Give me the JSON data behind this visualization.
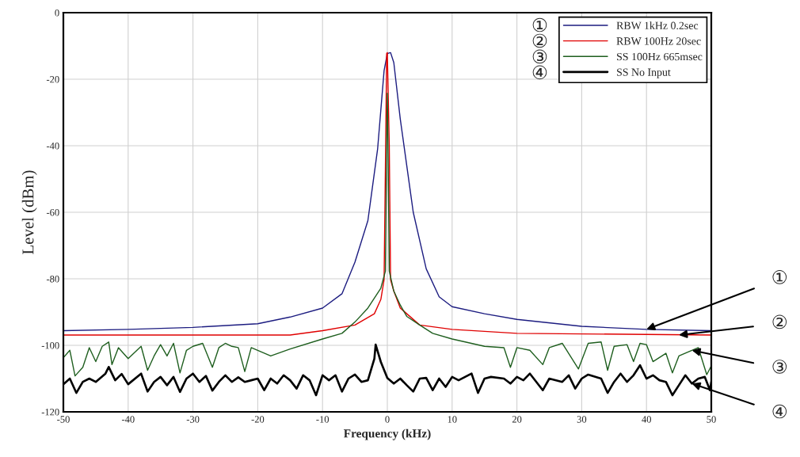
{
  "chart_data": {
    "type": "line",
    "xlabel": "Frequency (kHz)",
    "ylabel": "Level (dBm)",
    "xlim": [
      -50,
      50
    ],
    "ylim": [
      -120,
      0
    ],
    "xticks": [
      -50,
      -40,
      -30,
      -20,
      -10,
      0,
      10,
      20,
      30,
      40,
      50
    ],
    "yticks": [
      -120,
      -100,
      -80,
      -60,
      -40,
      -20,
      0
    ],
    "grid": true,
    "legend": "top right",
    "line_style": "solid",
    "marker": "none",
    "series": [
      {
        "name": "RBW 1kHz 0.2sec",
        "color": "#1c1c80",
        "x": [
          -50,
          -40,
          -30,
          -20,
          -15,
          -10,
          -7,
          -5,
          -3,
          -1.5,
          -0.5,
          0,
          0.5,
          1,
          2,
          4,
          6,
          8,
          10,
          15,
          20,
          30,
          40,
          50
        ],
        "values": [
          -95.6,
          -95.2,
          -94.6,
          -93.5,
          -91.5,
          -88.8,
          -84.5,
          -75,
          -62.5,
          -41,
          -17.4,
          -12.3,
          -12,
          -15,
          -32,
          -60,
          -77,
          -85.4,
          -88.4,
          -90.5,
          -92.2,
          -94.3,
          -95.2,
          -95.6
        ]
      },
      {
        "name": "RBW 100Hz 20sec",
        "color": "#e00000",
        "x": [
          -50,
          -15,
          -10,
          -5,
          -2,
          -1,
          -0.5,
          -0.3,
          -0.1,
          0,
          0.3,
          0.5,
          1,
          2,
          5,
          10,
          20,
          50
        ],
        "values": [
          -96.9,
          -96.9,
          -95.6,
          -93.9,
          -90.5,
          -86.2,
          -80.3,
          -47,
          -12.3,
          -12,
          -40,
          -80.3,
          -83.7,
          -88.8,
          -93.9,
          -95.2,
          -96.4,
          -96.9
        ]
      },
      {
        "name": "SS 100Hz 665msec",
        "color": "#1e5e1e",
        "x": [
          -50,
          -49,
          -48.2,
          -47,
          -46,
          -45,
          -44,
          -43,
          -42.5,
          -41.5,
          -40,
          -38,
          -37,
          -36,
          -35,
          -34,
          -33,
          -32,
          -31,
          -30,
          -28.5,
          -27,
          -26,
          -25,
          -24,
          -23,
          -22,
          -21,
          -20,
          -18,
          -15,
          -10,
          -7,
          -5,
          -3,
          -1,
          -0.3,
          -0.1,
          0,
          0.1,
          0.3,
          1,
          2,
          3,
          5,
          7,
          10,
          15,
          18,
          19,
          20,
          22,
          24,
          25,
          27,
          29.5,
          31,
          33,
          34,
          35,
          37,
          38,
          39,
          40,
          41,
          43,
          44,
          45,
          47,
          48,
          49.3,
          50
        ],
        "values": [
          -103.7,
          -101.5,
          -109.2,
          -106.6,
          -100.7,
          -104.9,
          -100.3,
          -99,
          -105.8,
          -100.7,
          -104,
          -100.3,
          -107.5,
          -103.2,
          -99.8,
          -103.2,
          -99.4,
          -108.3,
          -101.5,
          -100.3,
          -99.4,
          -106.6,
          -100.7,
          -99.4,
          -100.3,
          -100.7,
          -107.9,
          -100.7,
          -101.5,
          -103.2,
          -101.1,
          -98.1,
          -96.4,
          -93,
          -88.8,
          -82.8,
          -77.7,
          -38.7,
          -24.2,
          -38.7,
          -77.7,
          -83.7,
          -87.9,
          -91.3,
          -93.9,
          -96.4,
          -98.1,
          -100.3,
          -100.7,
          -106.6,
          -100.7,
          -101.5,
          -105.8,
          -100.7,
          -99.4,
          -107.1,
          -99.4,
          -99,
          -107.5,
          -100.3,
          -99.8,
          -104.9,
          -99.4,
          -99.8,
          -104.9,
          -102.4,
          -108.3,
          -103.2,
          -101.5,
          -100.7,
          -108.8,
          -106.2
        ]
      },
      {
        "name": "SS No Input",
        "color": "#000000",
        "x": [
          -50,
          -49,
          -48,
          -47,
          -46,
          -45,
          -43.5,
          -43,
          -42,
          -41,
          -40,
          -38,
          -37,
          -36,
          -35,
          -34,
          -33,
          -32,
          -31,
          -30,
          -29,
          -28,
          -27,
          -26,
          -25,
          -24,
          -23,
          -22,
          -21,
          -20,
          -19,
          -18,
          -17,
          -16,
          -15,
          -14,
          -13,
          -12,
          -11,
          -10,
          -9,
          -8,
          -7,
          -6,
          -5,
          -4,
          -3,
          -2,
          -1.8,
          -1,
          0,
          1,
          2,
          3,
          4,
          5,
          6,
          7,
          8,
          9,
          10,
          11,
          13,
          14,
          15,
          16,
          18,
          19,
          20,
          21,
          22,
          24,
          25,
          27,
          28,
          29,
          30,
          31,
          33,
          34,
          35,
          36,
          37,
          38,
          39,
          40,
          41,
          42,
          43,
          44,
          45,
          46,
          47,
          48,
          49,
          49.8,
          50
        ],
        "values": [
          -111.7,
          -110,
          -114.3,
          -111,
          -110,
          -111,
          -108.5,
          -106.5,
          -110.5,
          -108.6,
          -111.7,
          -108.5,
          -113.9,
          -111,
          -109.5,
          -112,
          -109.5,
          -114,
          -110,
          -108.5,
          -111,
          -109.2,
          -113.6,
          -111,
          -109,
          -111,
          -109.6,
          -111,
          -110.5,
          -110,
          -113.5,
          -110,
          -111.5,
          -109,
          -110.5,
          -113,
          -109,
          -110.5,
          -115,
          -109,
          -110.5,
          -109,
          -113.9,
          -110,
          -108.8,
          -111,
          -110.5,
          -104,
          -99.8,
          -105,
          -109.8,
          -111.5,
          -110,
          -112,
          -113.9,
          -110,
          -109.8,
          -113.5,
          -110,
          -112.5,
          -109.5,
          -110.5,
          -108.5,
          -114.3,
          -110,
          -109.5,
          -110,
          -111.5,
          -109.5,
          -110.5,
          -108.5,
          -113.5,
          -110,
          -111,
          -109,
          -113,
          -110,
          -108.8,
          -110,
          -114.3,
          -111,
          -108.5,
          -111,
          -109,
          -106,
          -110,
          -109,
          -110.5,
          -111,
          -115,
          -112,
          -109,
          -111.5,
          -110,
          -109.5,
          -113.5,
          -111
        ]
      }
    ],
    "annotations": [
      "①",
      "②",
      "③",
      "④",
      {
        "text": "①",
        "x": 40,
        "y": -95.2
      },
      {
        "text": "②",
        "x": 45,
        "y": -96.9
      },
      {
        "text": "③",
        "x": 47,
        "y": -101.5
      },
      {
        "text": "④",
        "x": 47,
        "y": -111.5
      }
    ]
  }
}
